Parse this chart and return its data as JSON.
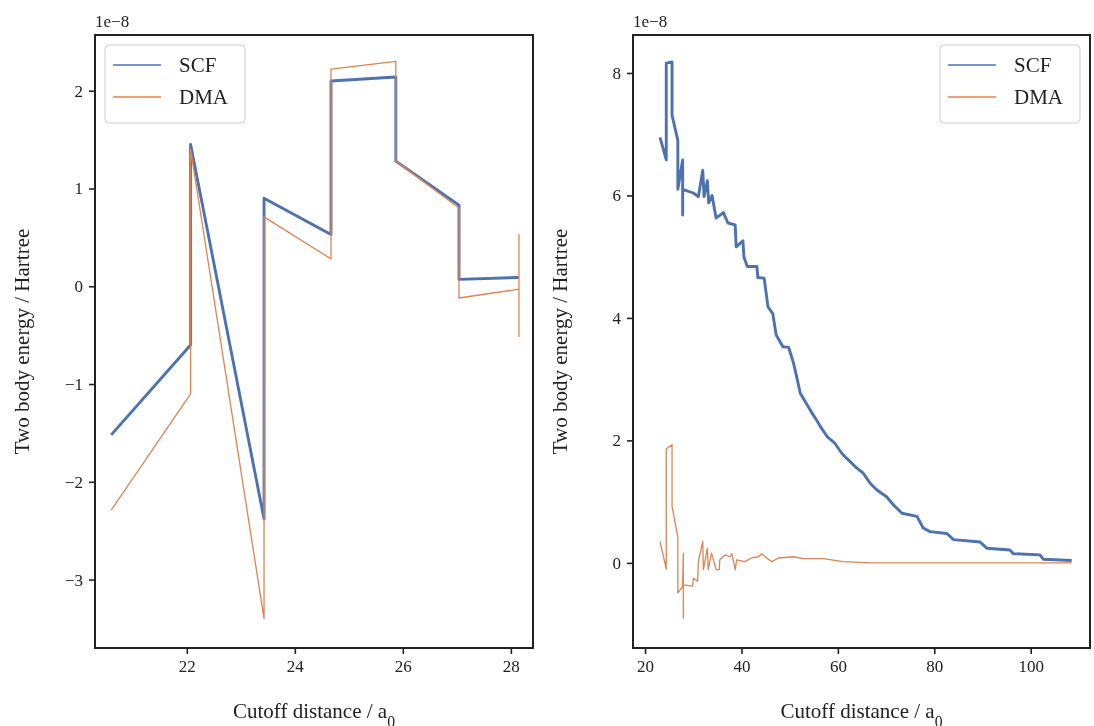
{
  "chart_data": [
    {
      "type": "line",
      "xlabel": "Cutoff distance / a$_{0}$",
      "ylabel": "Two body energy / Hartree",
      "annotations": [
        "1e−8"
      ],
      "xlim": [
        20.3,
        28.41
      ],
      "ylim": [
        -3.7,
        2.57
      ],
      "xticks": [
        22,
        24,
        26,
        28
      ],
      "yticks": [
        {
          "value": -3,
          "label": "−3"
        },
        {
          "value": -2,
          "label": "−2"
        },
        {
          "value": -1,
          "label": "−1"
        },
        0,
        1,
        2
      ],
      "legend": "top left",
      "grid": false,
      "series": [
        {
          "name": "SCF",
          "color": "#4c72b0",
          "x": [
            20.6,
            22.07,
            22.07,
            23.43,
            23.43,
            24.67,
            24.67,
            25.87,
            25.87,
            27.04,
            27.04,
            28.15
          ],
          "values": [
            -1.52,
            -0.6,
            1.45,
            -2.38,
            0.9,
            0.53,
            2.1,
            2.14,
            1.28,
            0.83,
            0.07,
            0.09
          ]
        },
        {
          "name": "DMA",
          "color": "#dd8452",
          "x": [
            20.6,
            22.07,
            22.07,
            23.43,
            23.43,
            24.67,
            24.67,
            25.87,
            25.87,
            27.04,
            27.04,
            28.15,
            28.15,
            28.15
          ],
          "values": [
            -2.29,
            -1.1,
            1.4,
            -3.4,
            0.71,
            0.28,
            2.22,
            2.3,
            1.28,
            0.8,
            -0.12,
            -0.03,
            0.53,
            -0.52
          ]
        }
      ]
    },
    {
      "type": "line",
      "xlabel": "Cutoff distance / a$_{0}$",
      "ylabel": "Two body energy / Hartree",
      "annotations": [
        "1e−8"
      ],
      "xlim": [
        17.5,
        112.3
      ],
      "ylim": [
        -1.39,
        8.62
      ],
      "xticks": [
        20,
        40,
        60,
        80,
        100
      ],
      "yticks": [
        0,
        2,
        4,
        6,
        8
      ],
      "legend": "top right",
      "grid": false,
      "series": [
        {
          "name": "SCF",
          "color": "#4c72b0",
          "x": [
            23.1,
            24.4,
            24.4,
            25.6,
            25.6,
            26.8,
            26.8,
            27.8,
            27.8,
            27.8,
            30.0,
            31.06,
            31.97,
            32.24,
            32.93,
            33.2,
            33.9,
            34.73,
            36.25,
            37.2,
            38.7,
            38.9,
            40.3,
            40.5,
            41.2,
            43.2,
            43.4,
            44.7,
            45.2,
            45.5,
            46.5,
            47.2,
            48.6,
            49.8,
            50.8,
            51.5,
            52.2,
            53.4,
            54.6,
            55.6,
            56.6,
            57.8,
            59.4,
            60.8,
            61.8,
            63.9,
            65.3,
            66.7,
            68.1,
            70.1,
            71.5,
            73.3,
            76.4,
            77.7,
            79.1,
            82.6,
            84.0,
            89.5,
            90.9,
            95.7,
            96.4,
            101.9,
            102.6,
            108.5
          ],
          "values": [
            6.95,
            6.58,
            8.16,
            8.18,
            7.31,
            6.9,
            6.1,
            6.58,
            5.68,
            6.1,
            6.04,
            5.98,
            6.41,
            5.98,
            6.24,
            5.88,
            6.0,
            5.63,
            5.72,
            5.55,
            5.52,
            5.16,
            5.26,
            5.0,
            4.84,
            4.84,
            4.66,
            4.65,
            4.36,
            4.18,
            4.07,
            3.72,
            3.53,
            3.52,
            3.26,
            3.02,
            2.77,
            2.61,
            2.45,
            2.33,
            2.2,
            2.06,
            1.95,
            1.79,
            1.71,
            1.55,
            1.46,
            1.3,
            1.19,
            1.08,
            0.95,
            0.81,
            0.76,
            0.57,
            0.51,
            0.48,
            0.38,
            0.34,
            0.24,
            0.21,
            0.15,
            0.13,
            0.06,
            0.04
          ]
        },
        {
          "name": "DMA",
          "color": "#dd8452",
          "x": [
            23.1,
            24.4,
            24.4,
            25.6,
            25.6,
            26.8,
            26.8,
            27.8,
            27.95,
            27.95,
            27.95,
            29.9,
            30.0,
            30.9,
            31.06,
            31.97,
            32.1,
            32.93,
            33.1,
            33.8,
            34.73,
            35.4,
            35.5,
            36.6,
            37.6,
            38.0,
            38.7,
            39.0,
            40.7,
            42.1,
            43.5,
            44.2,
            45.2,
            46.3,
            47.7,
            50.8,
            52.8,
            57.0,
            61.1,
            66.7,
            108.5
          ],
          "values": [
            0.35,
            -0.1,
            1.86,
            1.93,
            0.92,
            0.43,
            -0.49,
            -0.39,
            0.16,
            -0.9,
            -0.36,
            -0.38,
            -0.25,
            -0.3,
            0.02,
            0.35,
            -0.11,
            0.24,
            -0.11,
            0.16,
            -0.11,
            -0.11,
            0.05,
            0.13,
            0.1,
            0.15,
            -0.11,
            0.05,
            0.02,
            0.08,
            0.1,
            0.15,
            0.08,
            0.02,
            0.08,
            0.1,
            0.07,
            0.07,
            0.02,
            0.0,
            0.0
          ]
        }
      ]
    }
  ]
}
